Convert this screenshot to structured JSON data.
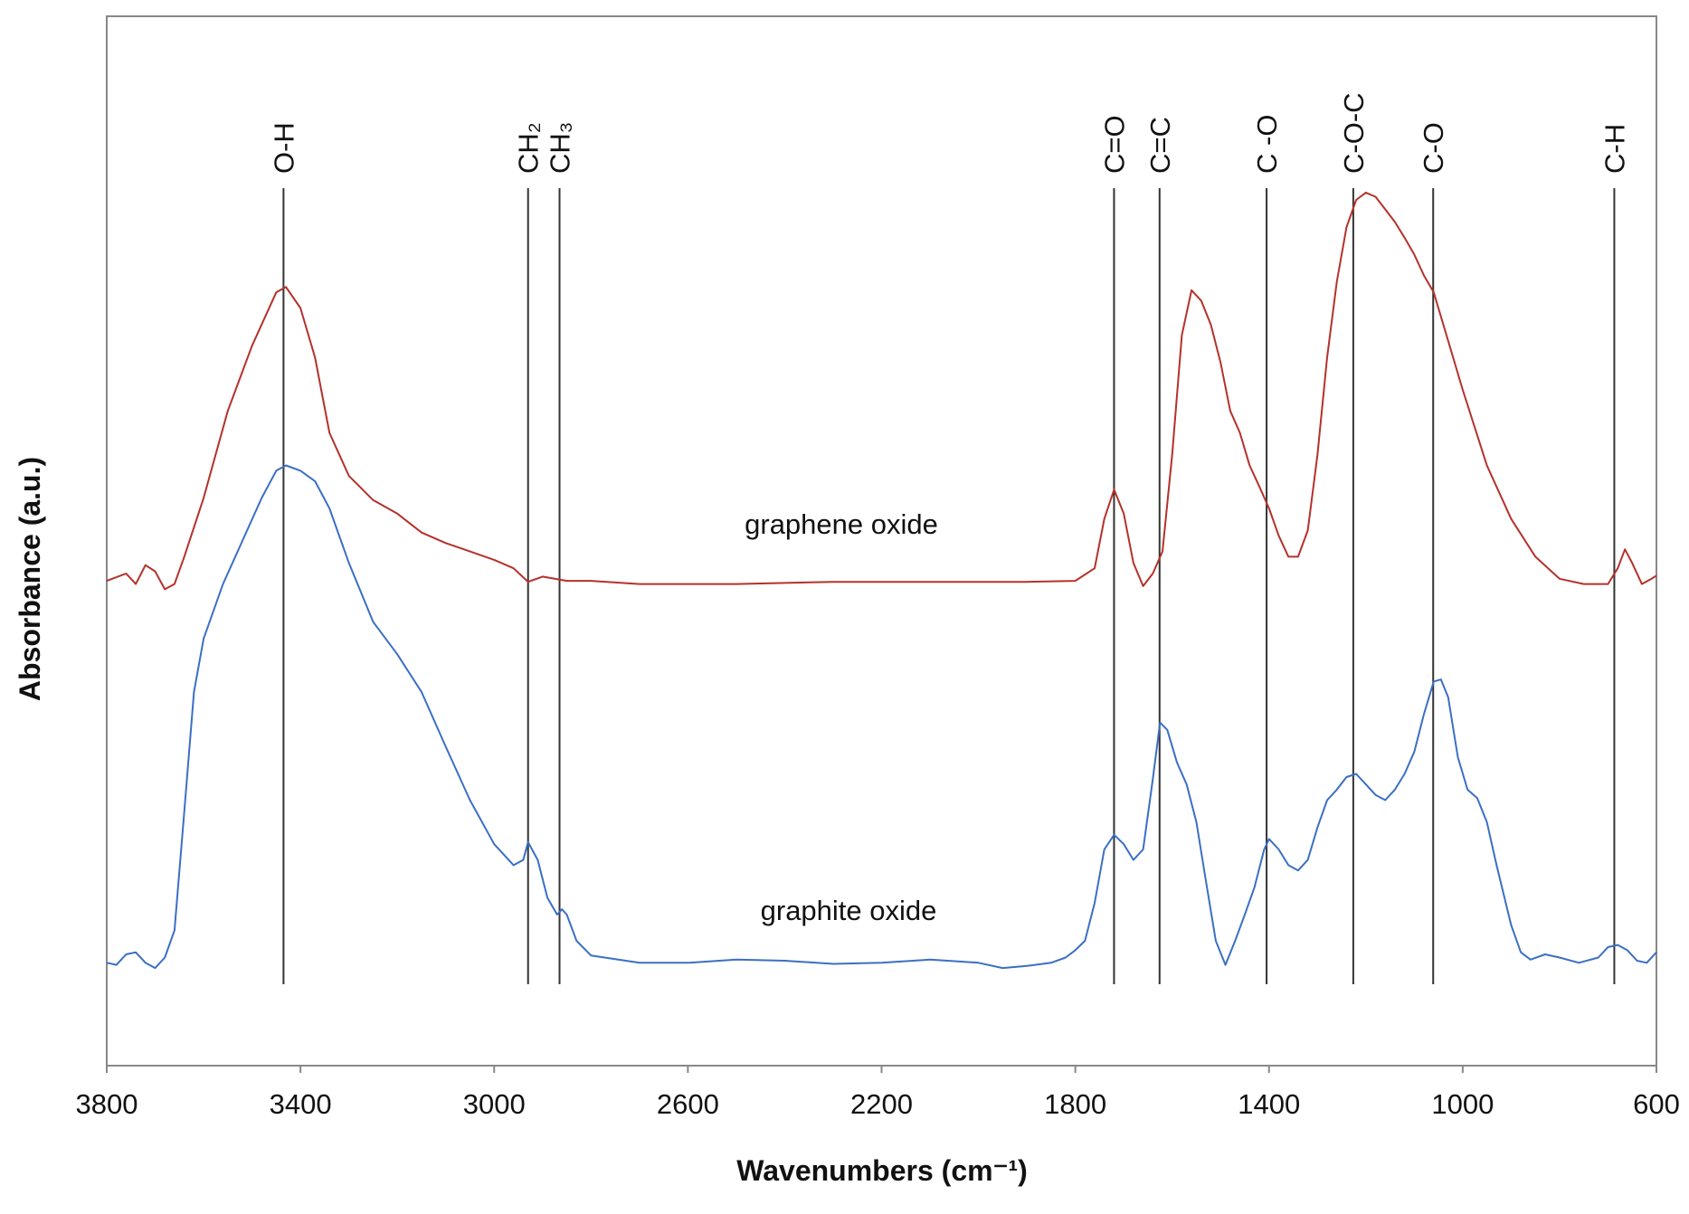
{
  "chart_data": {
    "type": "line",
    "xlabel": "Wavenumbers (cm⁻¹)",
    "ylabel": "Absorbance (a.u.)",
    "xlim": [
      3800,
      600
    ],
    "xticks": [
      3800,
      3400,
      3000,
      2600,
      2200,
      1800,
      1400,
      1000,
      600
    ],
    "ylim": [
      0,
      100
    ],
    "grid": false,
    "annotations": [
      {
        "label": "O-H",
        "x": 3435
      },
      {
        "label": "CH₂",
        "x": 2930
      },
      {
        "label": "CH₃",
        "x": 2865
      },
      {
        "label": "C=O",
        "x": 1720
      },
      {
        "label": "C=C",
        "x": 1626
      },
      {
        "label": "C -O",
        "x": 1405
      },
      {
        "label": "C-O-C",
        "x": 1226
      },
      {
        "label": "C-O",
        "x": 1061
      },
      {
        "label": "C-H",
        "x": 687
      }
    ],
    "series": [
      {
        "name": "graphene oxide",
        "color": "#b5312c",
        "x": [
          3800,
          3760,
          3740,
          3720,
          3700,
          3680,
          3660,
          3640,
          3600,
          3550,
          3500,
          3450,
          3430,
          3400,
          3370,
          3340,
          3300,
          3250,
          3200,
          3150,
          3100,
          3050,
          3000,
          2960,
          2930,
          2900,
          2850,
          2800,
          2700,
          2500,
          2300,
          2100,
          1900,
          1800,
          1760,
          1740,
          1720,
          1700,
          1680,
          1660,
          1640,
          1620,
          1600,
          1580,
          1560,
          1540,
          1520,
          1500,
          1480,
          1460,
          1440,
          1420,
          1400,
          1380,
          1360,
          1340,
          1320,
          1300,
          1280,
          1260,
          1240,
          1220,
          1200,
          1180,
          1160,
          1140,
          1120,
          1100,
          1080,
          1060,
          1040,
          1000,
          950,
          900,
          850,
          800,
          750,
          700,
          680,
          665,
          650,
          630,
          610,
          600
        ],
        "values": [
          46.2,
          46.9,
          45.9,
          47.7,
          47.1,
          45.4,
          45.9,
          48.5,
          54.1,
          62.4,
          68.6,
          73.7,
          74.2,
          72.2,
          67.5,
          60.3,
          56.2,
          53.9,
          52.6,
          50.8,
          49.8,
          49.0,
          48.2,
          47.4,
          46.1,
          46.6,
          46.2,
          46.2,
          45.9,
          45.9,
          46.1,
          46.1,
          46.1,
          46.2,
          47.4,
          52.1,
          54.9,
          52.6,
          47.9,
          45.7,
          46.9,
          49.0,
          58.2,
          69.6,
          73.9,
          72.9,
          70.6,
          67.0,
          62.4,
          60.3,
          57.2,
          55.2,
          53.1,
          50.5,
          48.5,
          48.5,
          51.0,
          58.2,
          67.5,
          74.7,
          79.9,
          82.5,
          83.2,
          82.8,
          81.6,
          80.4,
          78.9,
          77.3,
          75.3,
          73.7,
          70.6,
          64.4,
          57.2,
          52.1,
          48.5,
          46.4,
          45.9,
          45.9,
          47.4,
          49.2,
          47.9,
          45.9,
          46.4,
          46.7
        ]
      },
      {
        "name": "graphite oxide",
        "color": "#3b6fc4",
        "x": [
          3800,
          3780,
          3760,
          3740,
          3720,
          3700,
          3680,
          3660,
          3640,
          3620,
          3600,
          3560,
          3520,
          3480,
          3450,
          3430,
          3400,
          3370,
          3340,
          3300,
          3250,
          3200,
          3150,
          3100,
          3050,
          3000,
          2960,
          2940,
          2930,
          2910,
          2890,
          2870,
          2860,
          2850,
          2830,
          2800,
          2700,
          2600,
          2500,
          2400,
          2300,
          2200,
          2100,
          2000,
          1950,
          1900,
          1850,
          1820,
          1800,
          1780,
          1760,
          1740,
          1720,
          1700,
          1680,
          1660,
          1640,
          1625,
          1610,
          1590,
          1570,
          1550,
          1530,
          1510,
          1490,
          1470,
          1450,
          1430,
          1410,
          1400,
          1380,
          1360,
          1340,
          1320,
          1300,
          1280,
          1260,
          1240,
          1220,
          1200,
          1180,
          1160,
          1140,
          1120,
          1100,
          1080,
          1060,
          1045,
          1030,
          1010,
          990,
          970,
          950,
          930,
          900,
          880,
          860,
          830,
          800,
          760,
          720,
          700,
          680,
          660,
          640,
          620,
          600
        ],
        "values": [
          9.8,
          9.6,
          10.6,
          10.8,
          9.8,
          9.3,
          10.3,
          12.9,
          24.2,
          35.6,
          40.7,
          45.9,
          50.0,
          54.1,
          56.7,
          57.2,
          56.7,
          55.7,
          53.1,
          47.9,
          42.3,
          39.2,
          35.6,
          30.4,
          25.3,
          21.1,
          19.1,
          19.6,
          21.3,
          19.6,
          16.0,
          14.4,
          14.9,
          14.4,
          11.9,
          10.5,
          9.8,
          9.8,
          10.1,
          10.0,
          9.7,
          9.8,
          10.1,
          9.8,
          9.3,
          9.5,
          9.8,
          10.3,
          11.0,
          11.9,
          15.5,
          20.6,
          22.0,
          21.1,
          19.6,
          20.6,
          27.3,
          32.7,
          32.0,
          28.9,
          26.8,
          23.2,
          17.5,
          11.9,
          9.6,
          11.9,
          14.4,
          17.0,
          20.6,
          21.6,
          20.6,
          19.1,
          18.6,
          19.6,
          22.7,
          25.3,
          26.3,
          27.5,
          27.8,
          26.8,
          25.8,
          25.3,
          26.3,
          27.8,
          29.9,
          33.5,
          36.6,
          36.8,
          35.1,
          29.4,
          26.3,
          25.5,
          23.2,
          19.1,
          13.4,
          10.8,
          10.1,
          10.6,
          10.3,
          9.8,
          10.3,
          11.3,
          11.5,
          11.0,
          10.0,
          9.8,
          10.8
        ]
      }
    ]
  }
}
